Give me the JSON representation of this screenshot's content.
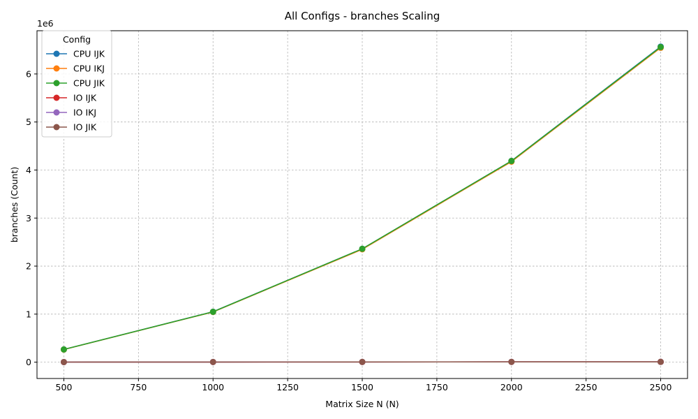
{
  "chart_data": {
    "type": "line",
    "title": "All Configs - branches Scaling",
    "xlabel": "Matrix Size N (N)",
    "ylabel": "branches (Count)",
    "y_multiplier_label": "1e6",
    "y_multiplier": 1000000,
    "x_ticks": [
      500,
      750,
      1000,
      1250,
      1500,
      1750,
      2000,
      2250,
      2500
    ],
    "y_ticks": [
      0,
      1,
      2,
      3,
      4,
      5,
      6
    ],
    "xlim": [
      410,
      2590
    ],
    "ylim": [
      -340000,
      6900000
    ],
    "grid": true,
    "legend_title": "Config",
    "legend_position": "top-left",
    "series": [
      {
        "name": "CPU IJK",
        "color": "#1f77b4",
        "x": [
          500,
          1000,
          1500,
          2000,
          2500
        ],
        "y": [
          265000,
          1050000,
          2360000,
          4190000,
          6570000
        ]
      },
      {
        "name": "CPU IKJ",
        "color": "#ff7f0e",
        "x": [
          500,
          1000,
          1500,
          2000,
          2500
        ],
        "y": [
          263000,
          1045000,
          2350000,
          4175000,
          6545000
        ]
      },
      {
        "name": "CPU JIK",
        "color": "#2ca02c",
        "x": [
          500,
          1000,
          1500,
          2000,
          2500
        ],
        "y": [
          265000,
          1048000,
          2360000,
          4188000,
          6560000
        ]
      },
      {
        "name": "IO IJK",
        "color": "#d62728",
        "x": [
          500,
          1000,
          1500,
          2000,
          2500
        ],
        "y": [
          2000,
          3500,
          4500,
          5500,
          6500
        ]
      },
      {
        "name": "IO IKJ",
        "color": "#9467bd",
        "x": [
          500,
          1000,
          1500,
          2000,
          2500
        ],
        "y": [
          2000,
          3500,
          4500,
          5500,
          6500
        ]
      },
      {
        "name": "IO JIK",
        "color": "#8c564b",
        "x": [
          500,
          1000,
          1500,
          2000,
          2500
        ],
        "y": [
          2000,
          3500,
          4500,
          5500,
          6500
        ]
      }
    ]
  }
}
